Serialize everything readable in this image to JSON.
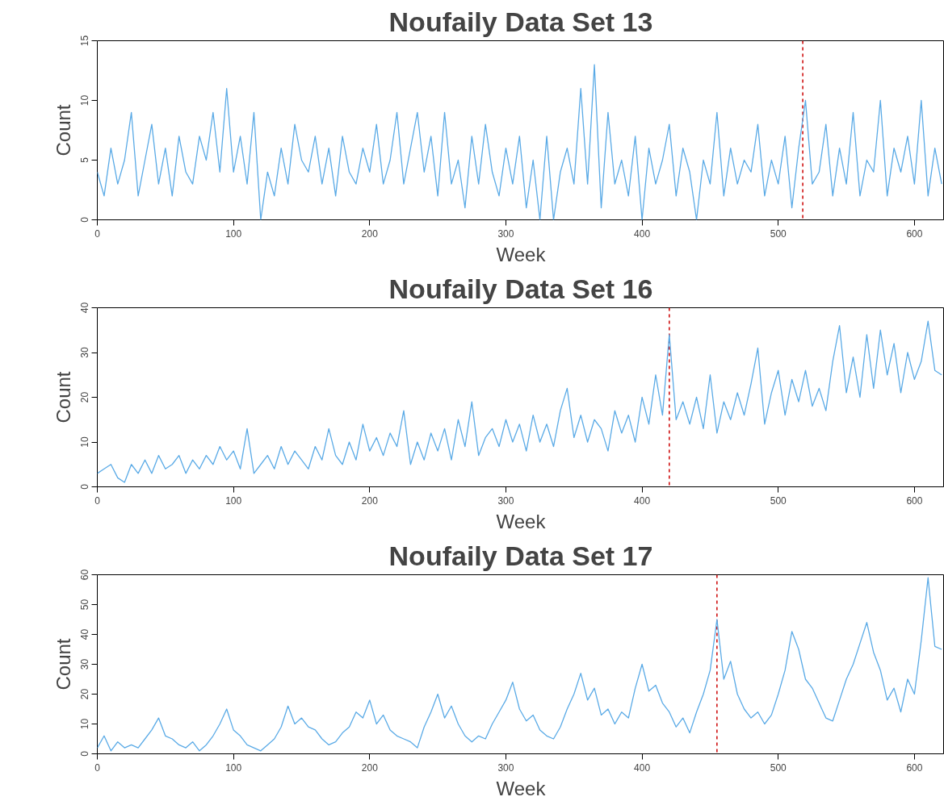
{
  "chart_data": [
    {
      "type": "line",
      "title": "Noufaily Data Set 13",
      "xlabel": "Week",
      "ylabel": "Count",
      "xlim": [
        0,
        622
      ],
      "ylim": [
        0,
        15
      ],
      "xticks": [
        0,
        100,
        200,
        300,
        400,
        500,
        600
      ],
      "yticks": [
        0,
        5,
        10,
        15
      ],
      "x": [
        0,
        5,
        10,
        15,
        20,
        25,
        30,
        35,
        40,
        45,
        50,
        55,
        60,
        65,
        70,
        75,
        80,
        85,
        90,
        95,
        100,
        105,
        110,
        115,
        120,
        125,
        130,
        135,
        140,
        145,
        150,
        155,
        160,
        165,
        170,
        175,
        180,
        185,
        190,
        195,
        200,
        205,
        210,
        215,
        220,
        225,
        230,
        235,
        240,
        245,
        250,
        255,
        260,
        265,
        270,
        275,
        280,
        285,
        290,
        295,
        300,
        305,
        310,
        315,
        320,
        325,
        330,
        335,
        340,
        345,
        350,
        355,
        360,
        365,
        370,
        375,
        380,
        385,
        390,
        395,
        400,
        405,
        410,
        415,
        420,
        425,
        430,
        435,
        440,
        445,
        450,
        455,
        460,
        465,
        470,
        475,
        480,
        485,
        490,
        495,
        500,
        505,
        510,
        515,
        520,
        525,
        530,
        535,
        540,
        545,
        550,
        555,
        560,
        565,
        570,
        575,
        580,
        585,
        590,
        595,
        600,
        605,
        610,
        615,
        620
      ],
      "series": [
        {
          "color": "#5aaae6",
          "values": [
            4,
            2,
            6,
            3,
            5,
            9,
            2,
            5,
            8,
            3,
            6,
            2,
            7,
            4,
            3,
            7,
            5,
            9,
            4,
            11,
            4,
            7,
            3,
            9,
            0,
            4,
            2,
            6,
            3,
            8,
            5,
            4,
            7,
            3,
            6,
            2,
            7,
            4,
            3,
            6,
            4,
            8,
            3,
            5,
            9,
            3,
            6,
            9,
            4,
            7,
            2,
            9,
            3,
            5,
            1,
            7,
            3,
            8,
            4,
            2,
            6,
            3,
            7,
            1,
            5,
            0,
            7,
            0,
            4,
            6,
            3,
            11,
            3,
            13,
            1,
            9,
            3,
            5,
            2,
            7,
            0,
            6,
            3,
            5,
            8,
            2,
            6,
            4,
            0,
            5,
            3,
            9,
            2,
            6,
            3,
            5,
            4,
            8,
            2,
            5,
            3,
            7,
            1,
            6,
            10,
            3,
            4,
            8,
            2,
            6,
            3,
            9,
            2,
            5,
            4,
            10,
            2,
            6,
            4,
            7,
            3,
            10,
            2,
            6,
            3
          ]
        }
      ],
      "ref_lines": [
        {
          "axis": "x",
          "value": 518,
          "color": "#cc0000",
          "line_style": "dashed"
        }
      ]
    },
    {
      "type": "line",
      "title": "Noufaily Data Set 16",
      "xlabel": "Week",
      "ylabel": "Count",
      "xlim": [
        0,
        622
      ],
      "ylim": [
        0,
        40
      ],
      "xticks": [
        0,
        100,
        200,
        300,
        400,
        500,
        600
      ],
      "yticks": [
        0,
        10,
        20,
        30,
        40
      ],
      "x": [
        0,
        5,
        10,
        15,
        20,
        25,
        30,
        35,
        40,
        45,
        50,
        55,
        60,
        65,
        70,
        75,
        80,
        85,
        90,
        95,
        100,
        105,
        110,
        115,
        120,
        125,
        130,
        135,
        140,
        145,
        150,
        155,
        160,
        165,
        170,
        175,
        180,
        185,
        190,
        195,
        200,
        205,
        210,
        215,
        220,
        225,
        230,
        235,
        240,
        245,
        250,
        255,
        260,
        265,
        270,
        275,
        280,
        285,
        290,
        295,
        300,
        305,
        310,
        315,
        320,
        325,
        330,
        335,
        340,
        345,
        350,
        355,
        360,
        365,
        370,
        375,
        380,
        385,
        390,
        395,
        400,
        405,
        410,
        415,
        420,
        425,
        430,
        435,
        440,
        445,
        450,
        455,
        460,
        465,
        470,
        475,
        480,
        485,
        490,
        495,
        500,
        505,
        510,
        515,
        520,
        525,
        530,
        535,
        540,
        545,
        550,
        555,
        560,
        565,
        570,
        575,
        580,
        585,
        590,
        595,
        600,
        605,
        610,
        615,
        620
      ],
      "series": [
        {
          "color": "#5aaae6",
          "values": [
            3,
            4,
            5,
            2,
            1,
            5,
            3,
            6,
            3,
            7,
            4,
            5,
            7,
            3,
            6,
            4,
            7,
            5,
            9,
            6,
            8,
            4,
            13,
            3,
            5,
            7,
            4,
            9,
            5,
            8,
            6,
            4,
            9,
            6,
            13,
            7,
            5,
            10,
            6,
            14,
            8,
            11,
            7,
            12,
            9,
            17,
            5,
            10,
            6,
            12,
            8,
            13,
            6,
            15,
            9,
            19,
            7,
            11,
            13,
            9,
            15,
            10,
            14,
            8,
            16,
            10,
            14,
            9,
            17,
            22,
            11,
            16,
            10,
            15,
            13,
            8,
            17,
            12,
            16,
            10,
            20,
            14,
            25,
            16,
            34,
            15,
            19,
            14,
            20,
            13,
            25,
            12,
            19,
            15,
            21,
            16,
            23,
            31,
            14,
            21,
            26,
            16,
            24,
            19,
            26,
            18,
            22,
            17,
            28,
            36,
            21,
            29,
            20,
            34,
            22,
            35,
            25,
            32,
            21,
            30,
            24,
            28,
            37,
            26,
            25
          ]
        }
      ],
      "ref_lines": [
        {
          "axis": "x",
          "value": 420,
          "color": "#cc0000",
          "line_style": "dashed"
        }
      ]
    },
    {
      "type": "line",
      "title": "Noufaily Data Set 17",
      "xlabel": "Week",
      "ylabel": "Count",
      "xlim": [
        0,
        622
      ],
      "ylim": [
        0,
        60
      ],
      "xticks": [
        0,
        100,
        200,
        300,
        400,
        500,
        600
      ],
      "yticks": [
        0,
        10,
        20,
        30,
        40,
        50,
        60
      ],
      "x": [
        0,
        5,
        10,
        15,
        20,
        25,
        30,
        35,
        40,
        45,
        50,
        55,
        60,
        65,
        70,
        75,
        80,
        85,
        90,
        95,
        100,
        105,
        110,
        115,
        120,
        125,
        130,
        135,
        140,
        145,
        150,
        155,
        160,
        165,
        170,
        175,
        180,
        185,
        190,
        195,
        200,
        205,
        210,
        215,
        220,
        225,
        230,
        235,
        240,
        245,
        250,
        255,
        260,
        265,
        270,
        275,
        280,
        285,
        290,
        295,
        300,
        305,
        310,
        315,
        320,
        325,
        330,
        335,
        340,
        345,
        350,
        355,
        360,
        365,
        370,
        375,
        380,
        385,
        390,
        395,
        400,
        405,
        410,
        415,
        420,
        425,
        430,
        435,
        440,
        445,
        450,
        455,
        460,
        465,
        470,
        475,
        480,
        485,
        490,
        495,
        500,
        505,
        510,
        515,
        520,
        525,
        530,
        535,
        540,
        545,
        550,
        555,
        560,
        565,
        570,
        575,
        580,
        585,
        590,
        595,
        600,
        605,
        610,
        615,
        620
      ],
      "series": [
        {
          "color": "#5aaae6",
          "values": [
            2,
            6,
            1,
            4,
            2,
            3,
            2,
            5,
            8,
            12,
            6,
            5,
            3,
            2,
            4,
            1,
            3,
            6,
            10,
            15,
            8,
            6,
            3,
            2,
            1,
            3,
            5,
            9,
            16,
            10,
            12,
            9,
            8,
            5,
            3,
            4,
            7,
            9,
            14,
            12,
            18,
            10,
            13,
            8,
            6,
            5,
            4,
            2,
            9,
            14,
            20,
            12,
            16,
            10,
            6,
            4,
            6,
            5,
            10,
            14,
            18,
            24,
            15,
            11,
            13,
            8,
            6,
            5,
            9,
            15,
            20,
            27,
            18,
            22,
            13,
            15,
            10,
            14,
            12,
            22,
            30,
            21,
            23,
            17,
            14,
            9,
            12,
            7,
            14,
            20,
            28,
            45,
            25,
            31,
            20,
            15,
            12,
            14,
            10,
            13,
            20,
            28,
            41,
            35,
            25,
            22,
            17,
            12,
            11,
            18,
            25,
            30,
            37,
            44,
            34,
            28,
            18,
            22,
            14,
            25,
            20,
            38,
            59,
            36,
            35
          ]
        }
      ],
      "ref_lines": [
        {
          "axis": "x",
          "value": 455,
          "color": "#cc0000",
          "line_style": "dashed"
        }
      ]
    }
  ]
}
